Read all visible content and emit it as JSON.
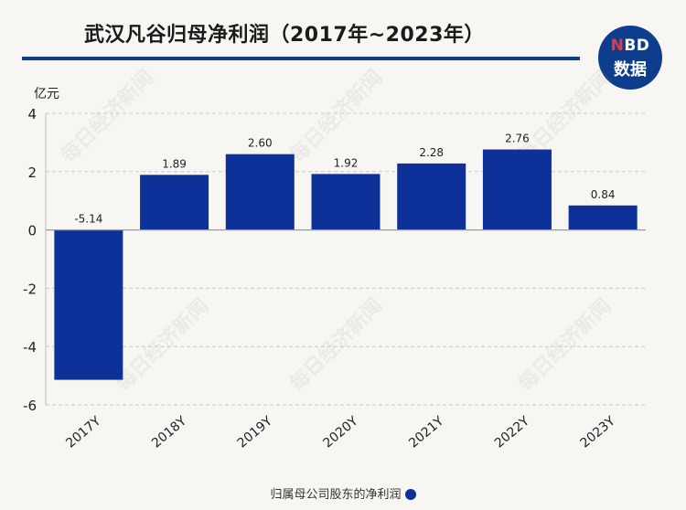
{
  "header": {
    "title": "武汉凡谷归母净利润（2017年~2023年）",
    "logo_line1_n": "N",
    "logo_line1_rest": "BD",
    "logo_line2": "数据"
  },
  "watermark": "每日经济新闻",
  "colors": {
    "bar": "#0d3199",
    "accent": "#0d3d8c",
    "logo_bg": "#0e3d8e"
  },
  "chart_data": {
    "type": "bar",
    "title": "武汉凡谷归母净利润（2017年~2023年）",
    "ylabel": "亿元",
    "xlabel": "",
    "categories": [
      "2017Y",
      "2018Y",
      "2019Y",
      "2020Y",
      "2021Y",
      "2022Y",
      "2023Y"
    ],
    "series": [
      {
        "name": "归属母公司股东的净利润",
        "values": [
          -5.14,
          1.89,
          2.6,
          1.92,
          2.28,
          2.76,
          0.84
        ]
      }
    ],
    "value_labels": [
      "-5.14",
      "1.89",
      "2.60",
      "1.92",
      "2.28",
      "2.76",
      "0.84"
    ],
    "ylim": [
      -6,
      4
    ],
    "yticks": [
      4,
      2,
      0,
      -2,
      -4,
      -6
    ],
    "grid": true,
    "legend_position": "bottom"
  }
}
